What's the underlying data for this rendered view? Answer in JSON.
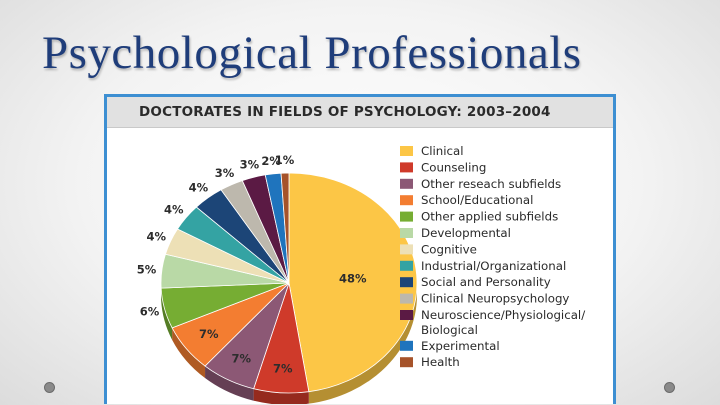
{
  "slide": {
    "title": "Psychological Professionals"
  },
  "chart_data": {
    "type": "pie",
    "title": "DOCTORATES IN FIELDS OF PSYCHOLOGY: 2003–2004",
    "legend_position": "right",
    "slices": [
      {
        "label": "Clinical",
        "value": 48,
        "display": "48%",
        "color": "#fcc646"
      },
      {
        "label": "Counseling",
        "value": 7,
        "display": "7%",
        "color": "#cf3a2a"
      },
      {
        "label": "Other reseach subfields",
        "value": 7,
        "display": "7%",
        "color": "#8c5875"
      },
      {
        "label": "School/Educational",
        "value": 7,
        "display": "7%",
        "color": "#f37d31"
      },
      {
        "label": "Other applied subfields",
        "value": 6,
        "display": "6%",
        "color": "#76ad33"
      },
      {
        "label": "Developmental",
        "value": 5,
        "display": "5%",
        "color": "#b9d9a6"
      },
      {
        "label": "Cognitive",
        "value": 4,
        "display": "4%",
        "color": "#ede0b6"
      },
      {
        "label": "Industrial/Organizational",
        "value": 4,
        "display": "4%",
        "color": "#34a3a3"
      },
      {
        "label": "Social and Personality",
        "value": 4,
        "display": "4%",
        "color": "#1c4577"
      },
      {
        "label": "Clinical Neuropsychology",
        "value": 3,
        "display": "3%",
        "color": "#bdb8ad"
      },
      {
        "label": "Neuroscience/Physiological/ Biological",
        "value": 3,
        "display": "3%",
        "color": "#5b1a44"
      },
      {
        "label": "Experimental",
        "value": 2,
        "display": "2%",
        "color": "#1f74bd"
      },
      {
        "label": "Health",
        "value": 1,
        "display": "1%",
        "color": "#a6532a"
      }
    ]
  }
}
